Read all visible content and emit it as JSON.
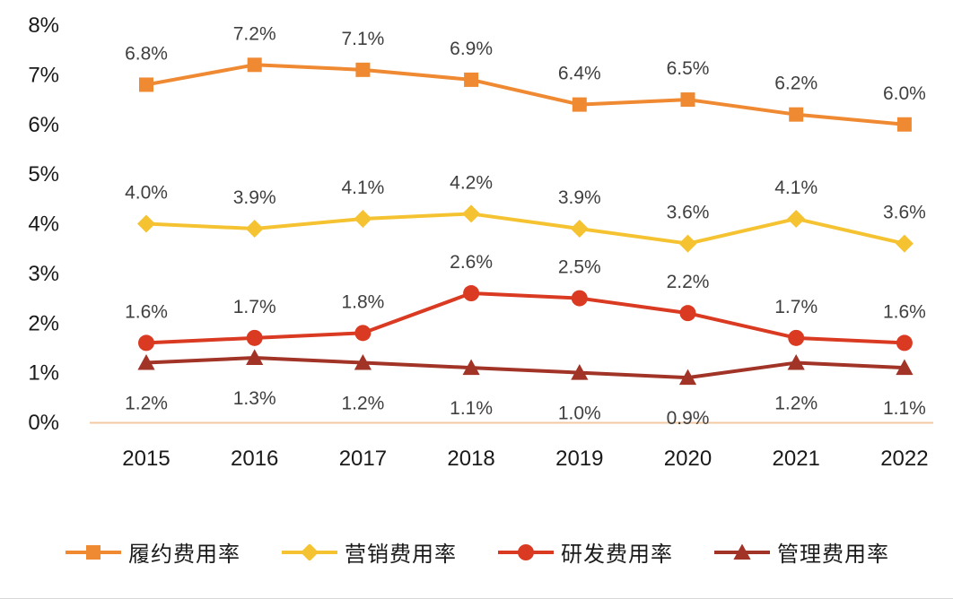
{
  "chart_data": {
    "type": "line",
    "title": "",
    "xlabel": "",
    "ylabel": "",
    "x": [
      "2015",
      "2016",
      "2017",
      "2018",
      "2019",
      "2020",
      "2021",
      "2022"
    ],
    "yticks": [
      "0%",
      "1%",
      "2%",
      "3%",
      "4%",
      "5%",
      "6%",
      "7%",
      "8%"
    ],
    "ylim": [
      0,
      8
    ],
    "grid": false,
    "legend_position": "bottom",
    "axis_color": "#F2C9A2",
    "tick_color": "#1a1a1a",
    "label_color": "#3f3f3f",
    "series": [
      {
        "name": "履约费用率",
        "color": "#EF8932",
        "marker": "square",
        "label_position": "above",
        "values": [
          6.8,
          7.2,
          7.1,
          6.9,
          6.4,
          6.5,
          6.2,
          6.0
        ]
      },
      {
        "name": "营销费用率",
        "color": "#F5C332",
        "marker": "diamond",
        "label_position": "above",
        "values": [
          4.0,
          3.9,
          4.1,
          4.2,
          3.9,
          3.6,
          4.1,
          3.6
        ]
      },
      {
        "name": "研发费用率",
        "color": "#D93A21",
        "marker": "circle",
        "label_position": "above",
        "values": [
          1.6,
          1.7,
          1.8,
          2.6,
          2.5,
          2.2,
          1.7,
          1.6
        ]
      },
      {
        "name": "管理费用率",
        "color": "#A13327",
        "marker": "triangle",
        "label_position": "below",
        "values": [
          1.2,
          1.3,
          1.2,
          1.1,
          1.0,
          0.9,
          1.2,
          1.1
        ]
      }
    ]
  }
}
